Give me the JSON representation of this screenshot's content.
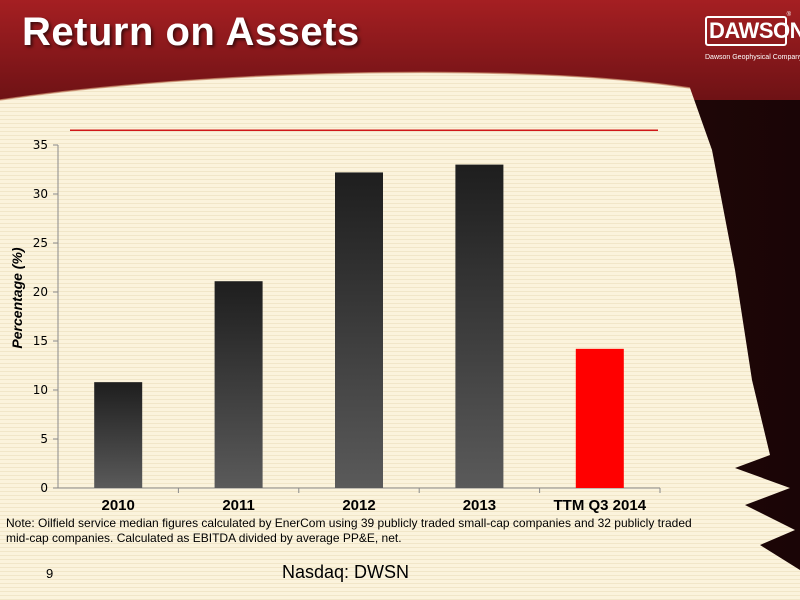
{
  "slide": {
    "title": "Return on Assets",
    "page_number": "9",
    "footer": "Nasdaq: DWSN",
    "note": "Note: Oilfield service median figures  calculated by EnerCom using 39 publicly traded small-cap companies and 32 publicly traded mid-cap companies. Calculated as EBITDA divided by average PP&E, net."
  },
  "logo": {
    "name": "DAWSON",
    "tagline": "Dawson Geophysical Company",
    "mark": "®"
  },
  "colors": {
    "header": "#8e1a1d",
    "bar_dark": "#2b2b2b",
    "bar_highlight": "#ff0000",
    "reference_line": "#d01818"
  },
  "chart_data": {
    "type": "bar",
    "categories": [
      "2010",
      "2011",
      "2012",
      "2013",
      "TTM Q3 2014"
    ],
    "values": [
      10.8,
      21.1,
      32.2,
      33.0,
      14.2
    ],
    "highlight_index": 4,
    "reference_line": 36.5,
    "ylabel": "Percentage (%)",
    "ylim": [
      0,
      35
    ],
    "yticks": [
      0,
      5,
      10,
      15,
      20,
      25,
      30,
      35
    ],
    "grid": false,
    "legend": "none"
  }
}
